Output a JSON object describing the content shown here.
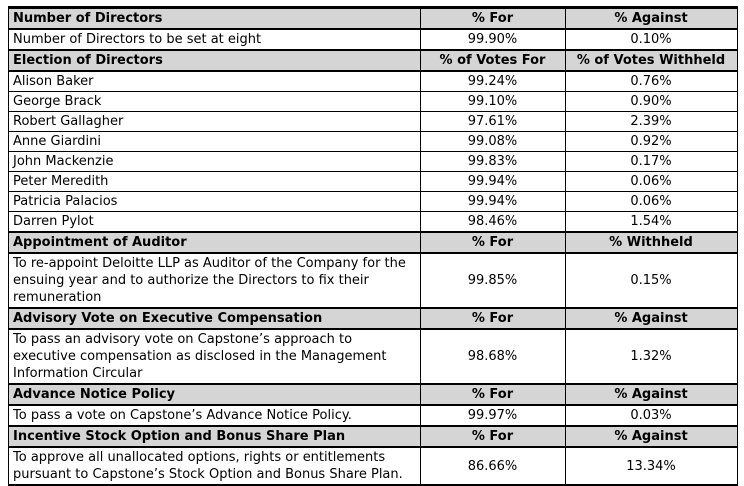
{
  "colors": {
    "section_header_bg": "#d5d5d5",
    "border": "#000000",
    "text": "#000000",
    "page_bg": "#ffffff"
  },
  "table": {
    "description": "Shareholder voting results table",
    "rows": [
      {
        "type": "header",
        "cells": [
          "Number of Directors",
          "% For",
          "% Against"
        ]
      },
      {
        "type": "data",
        "cells": [
          "Number of Directors to be set at eight",
          "99.90%",
          "0.10%"
        ]
      },
      {
        "type": "header",
        "cells": [
          "Election of Directors",
          "% of Votes For",
          "% of Votes Withheld"
        ]
      },
      {
        "type": "data",
        "cells": [
          "Alison Baker",
          "99.24%",
          "0.76%"
        ]
      },
      {
        "type": "data",
        "cells": [
          "George Brack",
          "99.10%",
          "0.90%"
        ]
      },
      {
        "type": "data",
        "cells": [
          "Robert Gallagher",
          "97.61%",
          "2.39%"
        ]
      },
      {
        "type": "data",
        "cells": [
          "Anne Giardini",
          "99.08%",
          "0.92%"
        ]
      },
      {
        "type": "data",
        "cells": [
          "John Mackenzie",
          "99.83%",
          "0.17%"
        ]
      },
      {
        "type": "data",
        "cells": [
          "Peter Meredith",
          "99.94%",
          "0.06%"
        ]
      },
      {
        "type": "data",
        "cells": [
          "Patricia Palacios",
          "99.94%",
          "0.06%"
        ]
      },
      {
        "type": "data",
        "cells": [
          "Darren Pylot",
          "98.46%",
          "1.54%"
        ]
      },
      {
        "type": "header",
        "cells": [
          "Appointment of Auditor",
          "% For",
          "% Withheld"
        ]
      },
      {
        "type": "data",
        "cells": [
          "To re-appoint Deloitte LLP as Auditor of the Company for the\nensuing year and to authorize the Directors to fix their\nremuneration",
          "99.85%",
          "0.15%"
        ]
      },
      {
        "type": "header",
        "cells": [
          "Advisory Vote on Executive Compensation",
          "% For",
          "% Against"
        ]
      },
      {
        "type": "data",
        "cells": [
          "To pass an advisory vote on Capstone’s approach to\nexecutive compensation as disclosed in the Management\nInformation Circular",
          "98.68%",
          "1.32%"
        ]
      },
      {
        "type": "header",
        "cells": [
          "Advance Notice Policy",
          "% For",
          "% Against"
        ]
      },
      {
        "type": "data",
        "cells": [
          "To pass a vote on Capstone’s Advance Notice Policy.",
          "99.97%",
          "0.03%"
        ]
      },
      {
        "type": "header",
        "cells": [
          "Incentive Stock Option and Bonus Share Plan",
          "% For",
          "% Against"
        ]
      },
      {
        "type": "data",
        "cells": [
          "To approve all unallocated options, rights or entitlements\npursuant to Capstone’s Stock Option and Bonus Share Plan.",
          "86.66%",
          "13.34%"
        ]
      }
    ]
  }
}
